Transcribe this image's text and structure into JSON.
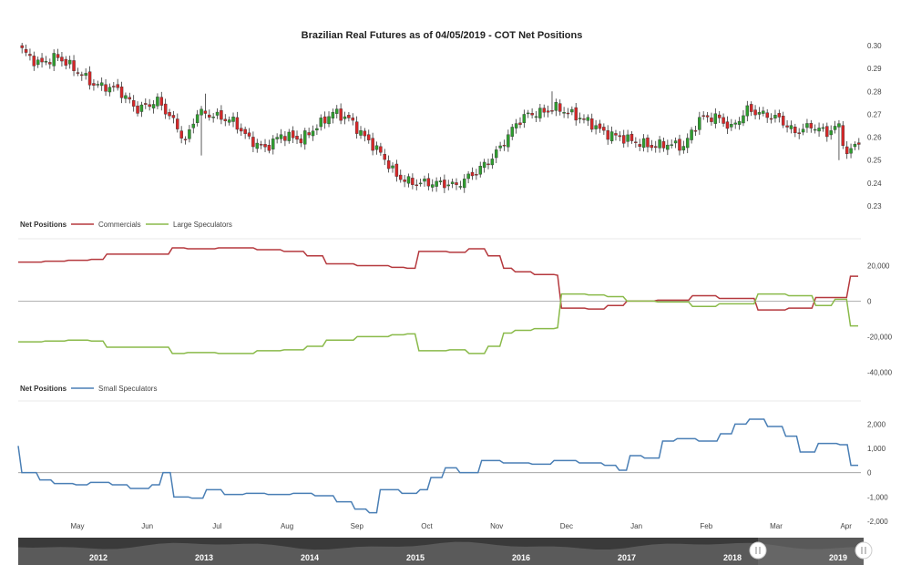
{
  "chart_data": [
    {
      "type": "candlestick",
      "title": "Brazilian Real Futures as of 04/05/2019 - COT Net Positions",
      "y_ticks": [
        "0.30",
        "0.29",
        "0.28",
        "0.27",
        "0.26",
        "0.25",
        "0.24",
        "0.23"
      ],
      "ylim": [
        0.23,
        0.3
      ],
      "up_color": "#2e9e2e",
      "down_color": "#d62728",
      "close_path": [
        [
          0,
          0.298
        ],
        [
          4,
          0.292
        ],
        [
          9,
          0.295
        ],
        [
          13,
          0.29
        ],
        [
          18,
          0.283
        ],
        [
          24,
          0.281
        ],
        [
          29,
          0.272
        ],
        [
          34,
          0.276
        ],
        [
          38,
          0.267
        ],
        [
          41,
          0.258
        ],
        [
          44,
          0.271
        ],
        [
          49,
          0.269
        ],
        [
          53,
          0.267
        ],
        [
          57,
          0.259
        ],
        [
          61,
          0.255
        ],
        [
          65,
          0.261
        ],
        [
          70,
          0.259
        ],
        [
          75,
          0.266
        ],
        [
          78,
          0.271
        ],
        [
          82,
          0.268
        ],
        [
          86,
          0.26
        ],
        [
          90,
          0.253
        ],
        [
          94,
          0.243
        ],
        [
          98,
          0.24
        ],
        [
          104,
          0.24
        ],
        [
          109,
          0.239
        ],
        [
          114,
          0.245
        ],
        [
          118,
          0.251
        ],
        [
          121,
          0.258
        ],
        [
          124,
          0.266
        ],
        [
          127,
          0.27
        ],
        [
          131,
          0.271
        ],
        [
          134,
          0.273
        ],
        [
          138,
          0.27
        ],
        [
          142,
          0.267
        ],
        [
          146,
          0.262
        ],
        [
          150,
          0.26
        ],
        [
          154,
          0.258
        ],
        [
          158,
          0.256
        ],
        [
          162,
          0.257
        ],
        [
          166,
          0.256
        ],
        [
          170,
          0.268
        ],
        [
          174,
          0.269
        ],
        [
          178,
          0.264
        ],
        [
          182,
          0.272
        ],
        [
          186,
          0.27
        ],
        [
          190,
          0.268
        ],
        [
          194,
          0.262
        ],
        [
          198,
          0.265
        ],
        [
          202,
          0.262
        ],
        [
          205,
          0.265
        ],
        [
          207,
          0.252
        ],
        [
          210,
          0.259
        ]
      ],
      "high_wicks": [
        {
          "i": 46,
          "v": 0.279
        },
        {
          "i": 133,
          "v": 0.28
        }
      ],
      "low_wicks": [
        {
          "i": 45,
          "v": 0.252
        },
        {
          "i": 205,
          "v": 0.25
        }
      ],
      "series_legend_label": "Net Positions"
    },
    {
      "type": "line",
      "legend_title": "Net Positions",
      "y_ticks": [
        "20,000",
        "0",
        "-20,000",
        "-40,000"
      ],
      "ylim": [
        -45000,
        30000
      ],
      "series": [
        {
          "name": "Commercials",
          "color": "#b5393e",
          "steps": [
            [
              0,
              22000
            ],
            [
              7,
              22500
            ],
            [
              13,
              23000
            ],
            [
              19,
              23500
            ],
            [
              23,
              26500
            ],
            [
              40,
              30000
            ],
            [
              44,
              29500
            ],
            [
              52,
              30000
            ],
            [
              62,
              29000
            ],
            [
              69,
              28000
            ],
            [
              75,
              25500
            ],
            [
              80,
              21000
            ],
            [
              88,
              20000
            ],
            [
              97,
              19000
            ],
            [
              101,
              18500
            ],
            [
              104,
              28000
            ],
            [
              112,
              27500
            ],
            [
              117,
              29500
            ],
            [
              122,
              25500
            ],
            [
              126,
              18500
            ],
            [
              129,
              16500
            ],
            [
              134,
              15000
            ],
            [
              140,
              14500
            ],
            [
              141,
              -4000
            ],
            [
              148,
              -4500
            ],
            [
              153,
              -2500
            ],
            [
              158,
              0
            ],
            [
              166,
              500
            ],
            [
              175,
              3000
            ],
            [
              182,
              1500
            ],
            [
              192,
              -5000
            ],
            [
              200,
              -4000
            ],
            [
              207,
              2000
            ],
            [
              212,
              2000
            ],
            [
              216,
              14000
            ],
            [
              218,
              14000
            ]
          ]
        },
        {
          "name": "Large Speculators",
          "color": "#8aba4a",
          "steps": [
            [
              0,
              -23000
            ],
            [
              7,
              -22500
            ],
            [
              13,
              -22000
            ],
            [
              19,
              -22500
            ],
            [
              23,
              -26000
            ],
            [
              40,
              -29500
            ],
            [
              44,
              -29000
            ],
            [
              52,
              -29500
            ],
            [
              62,
              -28000
            ],
            [
              69,
              -27500
            ],
            [
              75,
              -25500
            ],
            [
              80,
              -22000
            ],
            [
              88,
              -20000
            ],
            [
              97,
              -19000
            ],
            [
              101,
              -18500
            ],
            [
              104,
              -28000
            ],
            [
              112,
              -27500
            ],
            [
              117,
              -29500
            ],
            [
              122,
              -25500
            ],
            [
              126,
              -18000
            ],
            [
              129,
              -16500
            ],
            [
              134,
              -15500
            ],
            [
              140,
              -15000
            ],
            [
              141,
              4000
            ],
            [
              148,
              3500
            ],
            [
              153,
              2500
            ],
            [
              158,
              0
            ],
            [
              166,
              -500
            ],
            [
              175,
              -3000
            ],
            [
              182,
              -1500
            ],
            [
              192,
              4000
            ],
            [
              200,
              3000
            ],
            [
              207,
              -2500
            ],
            [
              212,
              1000
            ],
            [
              216,
              -14000
            ],
            [
              218,
              -14000
            ]
          ]
        }
      ]
    },
    {
      "type": "line",
      "legend_title": "Net Positions",
      "y_ticks": [
        "2,000",
        "1,000",
        "0",
        "-1,000",
        "-2,000"
      ],
      "ylim": [
        -2000,
        2500
      ],
      "series": [
        {
          "name": "Small Speculators",
          "color": "#4a7fb5",
          "steps": [
            [
              0,
              1100
            ],
            [
              1,
              0
            ],
            [
              6,
              -300
            ],
            [
              10,
              -450
            ],
            [
              16,
              -500
            ],
            [
              20,
              -400
            ],
            [
              26,
              -500
            ],
            [
              31,
              -650
            ],
            [
              37,
              -500
            ],
            [
              40,
              0
            ],
            [
              43,
              -1000
            ],
            [
              48,
              -1050
            ],
            [
              52,
              -700
            ],
            [
              57,
              -900
            ],
            [
              63,
              -850
            ],
            [
              69,
              -900
            ],
            [
              76,
              -850
            ],
            [
              82,
              -950
            ],
            [
              88,
              -1200
            ],
            [
              93,
              -1500
            ],
            [
              97,
              -1650
            ],
            [
              100,
              -700
            ],
            [
              106,
              -850
            ],
            [
              111,
              -700
            ],
            [
              114,
              -200
            ],
            [
              118,
              200
            ],
            [
              122,
              0
            ],
            [
              128,
              500
            ],
            [
              134,
              400
            ],
            [
              142,
              350
            ],
            [
              148,
              500
            ],
            [
              155,
              400
            ],
            [
              162,
              300
            ],
            [
              166,
              100
            ],
            [
              169,
              700
            ],
            [
              173,
              600
            ],
            [
              178,
              1300
            ],
            [
              182,
              1400
            ],
            [
              188,
              1300
            ],
            [
              194,
              1600
            ],
            [
              198,
              2000
            ],
            [
              202,
              2200
            ],
            [
              207,
              1900
            ],
            [
              212,
              1500
            ],
            [
              216,
              850
            ],
            [
              221,
              1200
            ],
            [
              227,
              1150
            ],
            [
              230,
              300
            ],
            [
              232,
              300
            ]
          ]
        }
      ]
    }
  ],
  "x_axis": {
    "months": [
      "May",
      "Jun",
      "Jul",
      "Aug",
      "Sep",
      "Oct",
      "Nov",
      "Dec",
      "Jan",
      "Feb",
      "Mar",
      "Apr"
    ]
  },
  "navigator": {
    "years": [
      "2012",
      "2013",
      "2014",
      "2015",
      "2016",
      "2017",
      "2018",
      "2019"
    ]
  }
}
